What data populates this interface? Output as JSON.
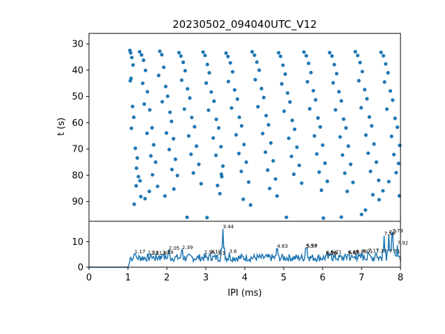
{
  "chart_data": [
    {
      "type": "scatter",
      "title": "20230502_094040UTC_V12",
      "xlabel": "",
      "ylabel": "t (s)",
      "xlim": [
        0,
        8
      ],
      "ylim": [
        97.5,
        26
      ],
      "y_inverted": true,
      "y_ticks": [
        30,
        40,
        50,
        60,
        70,
        80,
        90
      ],
      "marker_color": "#1f77b4",
      "x_distribution_note": "dense raster of spike intervals between ~1.05 and 8 ms; densest band near t=33-35 s",
      "points": [
        [
          1.05,
          32.5
        ],
        [
          1.07,
          33.4
        ],
        [
          1.1,
          35.2
        ],
        [
          1.13,
          38.0
        ],
        [
          1.08,
          43.1
        ],
        [
          1.06,
          44.0
        ],
        [
          1.12,
          53.8
        ],
        [
          1.15,
          57.9
        ],
        [
          1.09,
          62.1
        ],
        [
          1.19,
          69.7
        ],
        [
          1.24,
          73.4
        ],
        [
          1.22,
          77.3
        ],
        [
          1.27,
          80.5
        ],
        [
          1.31,
          82.1
        ],
        [
          1.21,
          84.0
        ],
        [
          1.33,
          88.1
        ],
        [
          1.16,
          91.0
        ],
        [
          1.3,
          33.0
        ],
        [
          1.35,
          34.2
        ],
        [
          1.4,
          36.2
        ],
        [
          1.45,
          40.1
        ],
        [
          1.38,
          45.0
        ],
        [
          1.5,
          48.2
        ],
        [
          1.42,
          52.9
        ],
        [
          1.56,
          55.1
        ],
        [
          1.62,
          61.9
        ],
        [
          1.49,
          64.0
        ],
        [
          1.66,
          68.4
        ],
        [
          1.59,
          72.6
        ],
        [
          1.71,
          75.0
        ],
        [
          1.63,
          79.8
        ],
        [
          1.76,
          84.2
        ],
        [
          1.55,
          86.1
        ],
        [
          1.44,
          88.9
        ],
        [
          1.82,
          32.8
        ],
        [
          1.87,
          34.1
        ],
        [
          1.92,
          38.9
        ],
        [
          1.79,
          42.0
        ],
        [
          1.97,
          46.2
        ],
        [
          2.02,
          49.9
        ],
        [
          1.88,
          52.0
        ],
        [
          2.08,
          56.0
        ],
        [
          2.12,
          59.5
        ],
        [
          1.99,
          63.9
        ],
        [
          2.17,
          66.1
        ],
        [
          2.06,
          70.2
        ],
        [
          2.22,
          73.9
        ],
        [
          2.13,
          77.8
        ],
        [
          2.27,
          80.1
        ],
        [
          2.18,
          85.2
        ],
        [
          1.95,
          87.9
        ],
        [
          2.31,
          33.3
        ],
        [
          2.36,
          34.6
        ],
        [
          2.42,
          37.0
        ],
        [
          2.47,
          40.2
        ],
        [
          2.38,
          43.8
        ],
        [
          2.53,
          47.1
        ],
        [
          2.59,
          50.6
        ],
        [
          2.45,
          54.8
        ],
        [
          2.64,
          58.0
        ],
        [
          2.71,
          61.5
        ],
        [
          2.56,
          65.0
        ],
        [
          2.76,
          68.9
        ],
        [
          2.62,
          72.0
        ],
        [
          2.82,
          75.8
        ],
        [
          2.68,
          79.1
        ],
        [
          2.88,
          83.2
        ],
        [
          2.52,
          96.0
        ],
        [
          2.93,
          33.1
        ],
        [
          2.98,
          34.4
        ],
        [
          3.04,
          37.8
        ],
        [
          3.09,
          41.0
        ],
        [
          3.01,
          44.9
        ],
        [
          3.14,
          48.3
        ],
        [
          3.21,
          51.8
        ],
        [
          3.07,
          55.2
        ],
        [
          3.27,
          58.7
        ],
        [
          3.33,
          62.0
        ],
        [
          3.19,
          65.8
        ],
        [
          3.39,
          69.1
        ],
        [
          3.26,
          72.4
        ],
        [
          3.44,
          76.5
        ],
        [
          3.4,
          79.6
        ],
        [
          3.41,
          80.5
        ],
        [
          3.3,
          83.9
        ],
        [
          3.36,
          87.0
        ],
        [
          3.03,
          96.1
        ],
        [
          3.52,
          33.5
        ],
        [
          3.57,
          34.8
        ],
        [
          3.63,
          37.2
        ],
        [
          3.69,
          40.6
        ],
        [
          3.58,
          44.3
        ],
        [
          3.74,
          47.5
        ],
        [
          3.81,
          51.0
        ],
        [
          3.66,
          54.4
        ],
        [
          3.86,
          57.9
        ],
        [
          3.92,
          61.2
        ],
        [
          3.78,
          64.6
        ],
        [
          3.98,
          68.3
        ],
        [
          3.85,
          71.7
        ],
        [
          4.04,
          75.0
        ],
        [
          3.91,
          78.5
        ],
        [
          4.1,
          82.6
        ],
        [
          3.96,
          89.1
        ],
        [
          4.15,
          91.3
        ],
        [
          4.19,
          33.0
        ],
        [
          4.25,
          34.3
        ],
        [
          4.31,
          36.9
        ],
        [
          4.37,
          40.0
        ],
        [
          4.27,
          43.6
        ],
        [
          4.43,
          47.0
        ],
        [
          4.49,
          50.4
        ],
        [
          4.34,
          53.9
        ],
        [
          4.55,
          57.3
        ],
        [
          4.61,
          60.8
        ],
        [
          4.46,
          64.1
        ],
        [
          4.67,
          67.7
        ],
        [
          4.53,
          71.2
        ],
        [
          4.73,
          74.5
        ],
        [
          4.59,
          78.0
        ],
        [
          4.79,
          81.4
        ],
        [
          4.64,
          85.0
        ],
        [
          4.83,
          87.9
        ],
        [
          4.87,
          33.4
        ],
        [
          4.92,
          34.7
        ],
        [
          4.98,
          38.1
        ],
        [
          5.04,
          41.5
        ],
        [
          4.95,
          45.2
        ],
        [
          5.1,
          48.7
        ],
        [
          5.16,
          52.1
        ],
        [
          5.01,
          55.6
        ],
        [
          5.22,
          59.1
        ],
        [
          5.28,
          62.5
        ],
        [
          5.13,
          65.9
        ],
        [
          5.34,
          69.3
        ],
        [
          5.2,
          72.8
        ],
        [
          5.4,
          76.2
        ],
        [
          5.26,
          79.6
        ],
        [
          5.46,
          83.0
        ],
        [
          5.07,
          96.0
        ],
        [
          5.52,
          33.1
        ],
        [
          5.58,
          34.5
        ],
        [
          5.64,
          37.4
        ],
        [
          5.7,
          40.9
        ],
        [
          5.61,
          44.4
        ],
        [
          5.76,
          47.8
        ],
        [
          5.82,
          51.3
        ],
        [
          5.67,
          54.7
        ],
        [
          5.88,
          58.2
        ],
        [
          5.94,
          61.6
        ],
        [
          5.79,
          65.0
        ],
        [
          6.0,
          68.5
        ],
        [
          5.85,
          71.9
        ],
        [
          6.06,
          75.4
        ],
        [
          5.91,
          78.8
        ],
        [
          6.12,
          82.3
        ],
        [
          5.97,
          85.7
        ],
        [
          6.02,
          96.3
        ],
        [
          6.18,
          33.3
        ],
        [
          6.24,
          34.6
        ],
        [
          6.3,
          37.9
        ],
        [
          6.36,
          41.3
        ],
        [
          6.27,
          44.8
        ],
        [
          6.42,
          48.2
        ],
        [
          6.48,
          51.7
        ],
        [
          6.33,
          55.1
        ],
        [
          6.54,
          58.6
        ],
        [
          6.6,
          62.0
        ],
        [
          6.45,
          65.4
        ],
        [
          6.66,
          68.9
        ],
        [
          6.51,
          72.3
        ],
        [
          6.72,
          75.8
        ],
        [
          6.57,
          79.2
        ],
        [
          6.78,
          82.7
        ],
        [
          6.63,
          86.1
        ],
        [
          6.48,
          95.9
        ],
        [
          6.84,
          33.0
        ],
        [
          6.9,
          34.4
        ],
        [
          6.96,
          37.1
        ],
        [
          7.02,
          40.5
        ],
        [
          6.93,
          44.0
        ],
        [
          7.08,
          47.4
        ],
        [
          7.14,
          50.9
        ],
        [
          6.99,
          54.3
        ],
        [
          7.2,
          57.8
        ],
        [
          7.26,
          61.2
        ],
        [
          7.11,
          64.7
        ],
        [
          7.32,
          68.1
        ],
        [
          7.17,
          71.6
        ],
        [
          7.38,
          75.0
        ],
        [
          7.23,
          78.5
        ],
        [
          7.44,
          81.9
        ],
        [
          7.29,
          87.4
        ],
        [
          7.1,
          93.2
        ],
        [
          7.0,
          94.9
        ],
        [
          7.5,
          33.2
        ],
        [
          7.56,
          34.5
        ],
        [
          7.62,
          37.6
        ],
        [
          7.68,
          41.0
        ],
        [
          7.59,
          44.5
        ],
        [
          7.74,
          47.9
        ],
        [
          7.8,
          51.4
        ],
        [
          7.65,
          54.8
        ],
        [
          7.86,
          58.3
        ],
        [
          7.92,
          61.7
        ],
        [
          7.77,
          65.2
        ],
        [
          7.98,
          68.6
        ],
        [
          7.83,
          72.1
        ],
        [
          7.95,
          75.5
        ],
        [
          7.89,
          79.0
        ],
        [
          7.7,
          82.4
        ],
        [
          7.55,
          85.9
        ],
        [
          7.45,
          89.3
        ],
        [
          7.97,
          87.8
        ]
      ]
    },
    {
      "type": "line",
      "xlabel": "IPI (ms)",
      "ylabel": "",
      "xlim": [
        0,
        8
      ],
      "ylim": [
        0,
        18
      ],
      "x_ticks": [
        0,
        1,
        2,
        3,
        4,
        5,
        6,
        7,
        8
      ],
      "y_ticks": [
        0,
        10
      ],
      "line_color": "#1f77b4",
      "peak_labels": [
        "1.17",
        "1.51",
        "1.6",
        "1.8",
        "1.89",
        "2.05",
        "2.39",
        "2.96",
        "3.12",
        "3.3",
        "3.6",
        "3.44",
        "4.83",
        "5.57",
        "5.59",
        "6.08",
        "6.10",
        "6.21",
        "6.65",
        "6.67",
        "6.86",
        "7.01",
        "7.17",
        "7.37",
        "7.58",
        "7.71",
        "7.7",
        "7.79",
        "7.92"
      ],
      "peak_values": [
        5.2,
        4.8,
        4.6,
        4.7,
        4.9,
        6.6,
        6.8,
        4.9,
        5.2,
        4.6,
        5.3,
        15.0,
        7.3,
        7.3,
        7.5,
        4.8,
        4.5,
        5.1,
        4.9,
        4.8,
        5.2,
        5.3,
        5.6,
        5.5,
        12.3,
        5.3,
        12.8,
        13.4,
        8.6
      ],
      "peaks": [
        {
          "x": 1.17,
          "y": 5.2
        },
        {
          "x": 1.51,
          "y": 4.8
        },
        {
          "x": 1.6,
          "y": 4.6
        },
        {
          "x": 1.8,
          "y": 4.7
        },
        {
          "x": 1.89,
          "y": 4.9
        },
        {
          "x": 2.05,
          "y": 6.6
        },
        {
          "x": 2.39,
          "y": 6.8
        },
        {
          "x": 2.96,
          "y": 4.9
        },
        {
          "x": 3.12,
          "y": 5.2
        },
        {
          "x": 3.3,
          "y": 4.6
        },
        {
          "x": 3.6,
          "y": 5.3
        },
        {
          "x": 3.44,
          "y": 15.0
        },
        {
          "x": 4.83,
          "y": 7.3
        },
        {
          "x": 5.57,
          "y": 7.3
        },
        {
          "x": 5.59,
          "y": 7.5
        },
        {
          "x": 6.08,
          "y": 4.8
        },
        {
          "x": 6.1,
          "y": 4.5
        },
        {
          "x": 6.21,
          "y": 5.1
        },
        {
          "x": 6.65,
          "y": 4.9
        },
        {
          "x": 6.67,
          "y": 4.8
        },
        {
          "x": 6.86,
          "y": 5.2
        },
        {
          "x": 7.01,
          "y": 5.3
        },
        {
          "x": 7.17,
          "y": 5.6
        },
        {
          "x": 7.37,
          "y": 5.5
        },
        {
          "x": 7.58,
          "y": 12.3
        },
        {
          "x": 7.71,
          "y": 5.3
        },
        {
          "x": 7.7,
          "y": 12.8
        },
        {
          "x": 7.79,
          "y": 13.4
        },
        {
          "x": 7.92,
          "y": 8.6
        }
      ]
    }
  ]
}
